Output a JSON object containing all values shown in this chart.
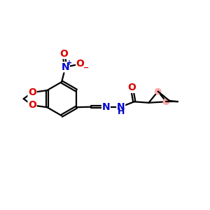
{
  "bg_color": "#ffffff",
  "bond_color": "#000000",
  "atom_colors": {
    "O": "#dd0000",
    "N": "#0000cc",
    "C": "#000000",
    "H": "#000000"
  },
  "bond_width": 1.6,
  "font_size_atom": 10,
  "font_size_small": 7,
  "highlight_color": "#ffaaaa",
  "xlim": [
    0,
    10
  ],
  "ylim": [
    0,
    10
  ]
}
